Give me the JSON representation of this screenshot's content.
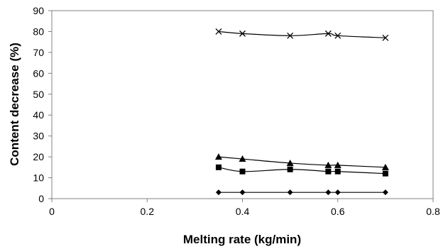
{
  "chart_data": {
    "type": "line",
    "title": "",
    "xlabel": "Melting rate (kg/min)",
    "ylabel": "Content decrease (%)",
    "xlim": [
      0,
      0.8
    ],
    "ylim": [
      0,
      90
    ],
    "x_ticks": [
      "0",
      "0.2",
      "0.4",
      "0.6",
      "0.8"
    ],
    "y_ticks": [
      "0",
      "10",
      "20",
      "30",
      "40",
      "50",
      "60",
      "70",
      "80",
      "90"
    ],
    "grid": false,
    "legend": "none",
    "series": [
      {
        "marker": "cross",
        "color": "#000000",
        "x": [
          0.35,
          0.4,
          0.5,
          0.58,
          0.6,
          0.7
        ],
        "y": [
          80,
          79,
          78,
          79,
          78,
          77
        ]
      },
      {
        "marker": "triangle",
        "color": "#000000",
        "x": [
          0.35,
          0.4,
          0.5,
          0.58,
          0.6,
          0.7
        ],
        "y": [
          20,
          19,
          17,
          16,
          16,
          15
        ]
      },
      {
        "marker": "square",
        "color": "#000000",
        "x": [
          0.35,
          0.4,
          0.5,
          0.58,
          0.6,
          0.7
        ],
        "y": [
          15,
          13,
          14,
          13,
          13,
          12
        ]
      },
      {
        "marker": "diamond",
        "color": "#000000",
        "x": [
          0.35,
          0.4,
          0.5,
          0.58,
          0.6,
          0.7
        ],
        "y": [
          3,
          3,
          3,
          3,
          3,
          3
        ]
      }
    ]
  }
}
